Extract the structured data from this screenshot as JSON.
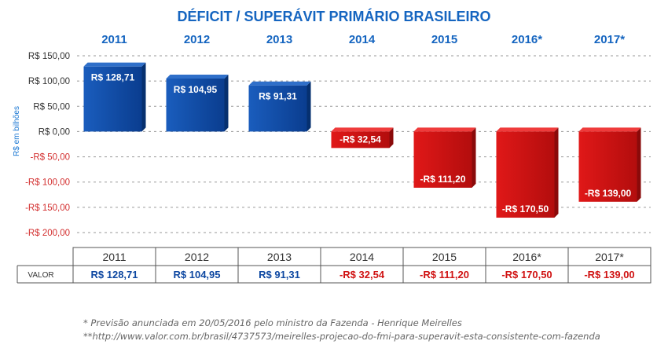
{
  "chart_data": {
    "type": "bar",
    "title": "DÉFICIT / SUPERÁVIT PRIMÁRIO BRASILEIRO",
    "ylabel": "R$ em bilhões",
    "categories": [
      "2011",
      "2012",
      "2013",
      "2014",
      "2015",
      "2016*",
      "2017*"
    ],
    "values": [
      128.71,
      104.95,
      91.31,
      -32.54,
      -111.2,
      -170.5,
      -139.0
    ],
    "value_labels": [
      "R$ 128,71",
      "R$ 104,95",
      "R$ 91,31",
      "-R$ 32,54",
      "-R$ 111,20",
      "-R$ 170,50",
      "-R$ 139,00"
    ],
    "ylim": [
      -200,
      150
    ],
    "yticks": [
      150,
      100,
      50,
      0,
      -50,
      -100,
      -150,
      -200
    ],
    "ytick_labels": [
      "R$ 150,00",
      "R$ 100,00",
      "R$ 50,00",
      "R$ 0,00",
      "-R$ 50,00",
      "-R$ 100,00",
      "-R$ 150,00",
      "-R$ 200,00"
    ],
    "grid": true
  },
  "table": {
    "row_header": "VALOR",
    "years": [
      "2011",
      "2012",
      "2013",
      "2014",
      "2015",
      "2016*",
      "2017*"
    ],
    "values": [
      "R$ 128,71",
      "R$ 104,95",
      "R$ 91,31",
      "-R$ 32,54",
      "-R$ 111,20",
      "-R$ 170,50",
      "-R$ 139,00"
    ]
  },
  "colors": {
    "positive": "#0d47a1",
    "negative": "#d01212",
    "title": "#1565c0",
    "year": "#1565c0",
    "tick_negative": "#d32f2f",
    "tick_positive": "#333333"
  },
  "footnotes": [
    "* Previsão anunciada em 20/05/2016 pelo ministro da Fazenda - Henrique Meirelles",
    "**http://www.valor.com.br/brasil/4737573/meirelles-projecao-do-fmi-para-superavit-esta-consistente-com-fazenda"
  ]
}
